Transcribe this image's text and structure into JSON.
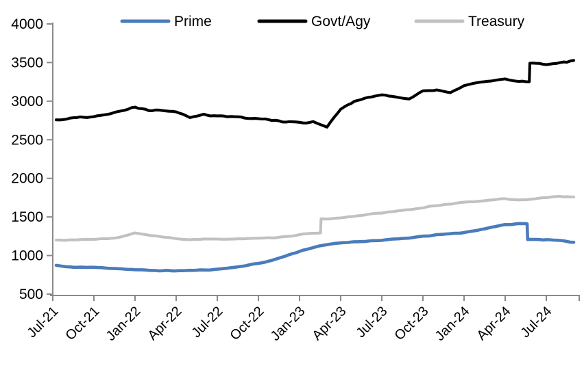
{
  "chart_data": {
    "type": "line",
    "title": "",
    "legend_position": "top",
    "axis_color": "#8a8a8a",
    "text_color": "#000000",
    "ylim": [
      500,
      4000
    ],
    "ytick_step": 500,
    "y_tick_labels": [
      "500",
      "1000",
      "1500",
      "2000",
      "2500",
      "3000",
      "3500",
      "4000"
    ],
    "x_tick_labels": [
      "Jul-21",
      "Oct-21",
      "Jan-22",
      "Apr-22",
      "Jul-22",
      "Oct-22",
      "Jan-23",
      "Apr-23",
      "Jul-23",
      "Oct-23",
      "Jan-24",
      "Apr-24",
      "Jul-24"
    ],
    "months": [
      "Jul-21",
      "Aug-21",
      "Sep-21",
      "Oct-21",
      "Nov-21",
      "Dec-21",
      "Jan-22",
      "Feb-22",
      "Mar-22",
      "Apr-22",
      "May-22",
      "Jun-22",
      "Jul-22",
      "Aug-22",
      "Sep-22",
      "Oct-22",
      "Nov-22",
      "Dec-22",
      "Jan-23",
      "Feb-23",
      "Mar-23",
      "Apr-23",
      "May-23",
      "Jun-23",
      "Jul-23",
      "Aug-23",
      "Sep-23",
      "Oct-23",
      "Nov-23",
      "Dec-23",
      "Jan-24",
      "Feb-24",
      "Mar-24",
      "Apr-24",
      "May-24",
      "Jun-24",
      "Jul-24",
      "Aug-24",
      "Sep-24"
    ],
    "series": [
      {
        "name": "Prime",
        "color": "#4a7cba",
        "values": [
          880,
          852,
          848,
          846,
          838,
          828,
          816,
          808,
          804,
          803,
          806,
          812,
          822,
          842,
          868,
          898,
          938,
          995,
          1055,
          1105,
          1140,
          1165,
          1178,
          1188,
          1198,
          1212,
          1228,
          1248,
          1268,
          1282,
          1298,
          1328,
          1368,
          1398,
          1412,
          1210,
          1205,
          1192,
          1172
        ]
      },
      {
        "name": "Govt/Agy",
        "color": "#000000",
        "values": [
          2755,
          2772,
          2790,
          2808,
          2832,
          2868,
          2930,
          2882,
          2886,
          2868,
          2798,
          2826,
          2812,
          2800,
          2786,
          2770,
          2756,
          2736,
          2722,
          2732,
          2670,
          2900,
          2992,
          3050,
          3076,
          3058,
          3030,
          3130,
          3152,
          3105,
          3192,
          3248,
          3256,
          3288,
          3252,
          3486,
          3472,
          3500,
          3528
        ]
      },
      {
        "name": "Treasury",
        "color": "#c1c1c1",
        "values": [
          1198,
          1200,
          1204,
          1210,
          1218,
          1242,
          1292,
          1262,
          1240,
          1218,
          1206,
          1210,
          1212,
          1215,
          1218,
          1222,
          1228,
          1242,
          1272,
          1288,
          1475,
          1487,
          1510,
          1532,
          1552,
          1572,
          1595,
          1620,
          1648,
          1668,
          1690,
          1700,
          1722,
          1736,
          1718,
          1732,
          1752,
          1766,
          1758
        ]
      }
    ],
    "steps": [
      {
        "series": "Prime",
        "after_index": 34,
        "frac": 0.62
      },
      {
        "series": "Govt/Agy",
        "after_index": 34,
        "frac": 0.78
      },
      {
        "series": "Treasury",
        "after_index": 19,
        "frac": 0.55
      }
    ]
  }
}
